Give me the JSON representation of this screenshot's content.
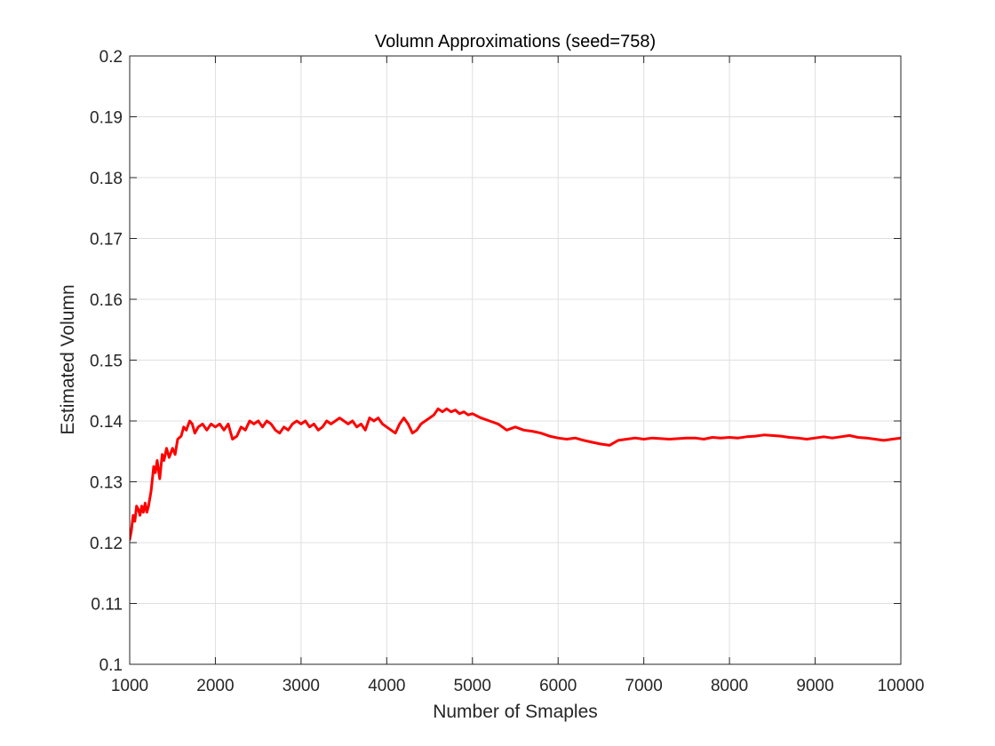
{
  "chart_data": {
    "type": "line",
    "title": "Volumn Approximations (seed=758)",
    "xlabel": "Number of Smaples",
    "ylabel": "Estimated Volumn",
    "xlim": [
      1000,
      10000
    ],
    "ylim": [
      0.1,
      0.2
    ],
    "xticks": [
      1000,
      2000,
      3000,
      4000,
      5000,
      6000,
      7000,
      8000,
      9000,
      10000
    ],
    "yticks": [
      0.1,
      0.11,
      0.12,
      0.13,
      0.14,
      0.15,
      0.16,
      0.17,
      0.18,
      0.19,
      0.2
    ],
    "xtick_labels": [
      "1000",
      "2000",
      "3000",
      "4000",
      "5000",
      "6000",
      "7000",
      "8000",
      "9000",
      "10000"
    ],
    "ytick_labels": [
      "0.1",
      "0.11",
      "0.12",
      "0.13",
      "0.14",
      "0.15",
      "0.16",
      "0.17",
      "0.18",
      "0.19",
      "0.2"
    ],
    "grid": true,
    "box": true,
    "line_color": "#ff0000",
    "series": [
      {
        "x": [
          1000,
          1020,
          1040,
          1060,
          1080,
          1100,
          1120,
          1140,
          1160,
          1180,
          1200,
          1220,
          1250,
          1280,
          1300,
          1320,
          1350,
          1380,
          1400,
          1430,
          1460,
          1500,
          1530,
          1560,
          1600,
          1630,
          1660,
          1700,
          1730,
          1760,
          1800,
          1850,
          1900,
          1950,
          2000,
          2050,
          2100,
          2150,
          2200,
          2250,
          2300,
          2350,
          2400,
          2450,
          2500,
          2550,
          2600,
          2650,
          2700,
          2750,
          2800,
          2850,
          2900,
          2950,
          3000,
          3050,
          3100,
          3150,
          3200,
          3250,
          3300,
          3350,
          3400,
          3450,
          3500,
          3550,
          3600,
          3650,
          3700,
          3750,
          3800,
          3850,
          3900,
          3950,
          4000,
          4050,
          4100,
          4150,
          4200,
          4250,
          4300,
          4350,
          4400,
          4450,
          4500,
          4550,
          4600,
          4650,
          4700,
          4750,
          4800,
          4850,
          4900,
          4950,
          5000,
          5100,
          5200,
          5300,
          5400,
          5500,
          5600,
          5700,
          5800,
          5900,
          6000,
          6100,
          6200,
          6300,
          6400,
          6500,
          6600,
          6700,
          6800,
          6900,
          7000,
          7100,
          7200,
          7300,
          7400,
          7500,
          7600,
          7700,
          7800,
          7900,
          8000,
          8100,
          8200,
          8300,
          8400,
          8500,
          8600,
          8700,
          8800,
          8900,
          9000,
          9100,
          9200,
          9300,
          9400,
          9500,
          9600,
          9700,
          9800,
          9900,
          10000
        ],
        "values": [
          0.1205,
          0.122,
          0.1245,
          0.1235,
          0.126,
          0.1255,
          0.1245,
          0.126,
          0.125,
          0.1265,
          0.125,
          0.126,
          0.1285,
          0.1325,
          0.1315,
          0.1335,
          0.1305,
          0.1345,
          0.1335,
          0.1355,
          0.134,
          0.1355,
          0.1345,
          0.137,
          0.1375,
          0.139,
          0.1385,
          0.14,
          0.1395,
          0.138,
          0.139,
          0.1395,
          0.1385,
          0.1395,
          0.139,
          0.1395,
          0.1385,
          0.1395,
          0.137,
          0.1375,
          0.139,
          0.1385,
          0.14,
          0.1395,
          0.14,
          0.139,
          0.14,
          0.1395,
          0.1385,
          0.138,
          0.139,
          0.1385,
          0.1395,
          0.14,
          0.1395,
          0.14,
          0.139,
          0.1395,
          0.1385,
          0.139,
          0.14,
          0.1395,
          0.14,
          0.1405,
          0.14,
          0.1395,
          0.14,
          0.139,
          0.1395,
          0.1385,
          0.1405,
          0.14,
          0.1405,
          0.1395,
          0.139,
          0.1385,
          0.138,
          0.1395,
          0.1405,
          0.1395,
          0.138,
          0.1385,
          0.1395,
          0.14,
          0.1405,
          0.141,
          0.142,
          0.1415,
          0.142,
          0.1415,
          0.1418,
          0.1412,
          0.1415,
          0.141,
          0.1412,
          0.1405,
          0.14,
          0.1395,
          0.1385,
          0.139,
          0.1385,
          0.1383,
          0.138,
          0.1375,
          0.1372,
          0.137,
          0.1372,
          0.1368,
          0.1365,
          0.1362,
          0.136,
          0.1368,
          0.137,
          0.1372,
          0.137,
          0.1372,
          0.1371,
          0.137,
          0.1371,
          0.1372,
          0.1372,
          0.137,
          0.1373,
          0.1372,
          0.1373,
          0.1372,
          0.1374,
          0.1375,
          0.1377,
          0.1376,
          0.1375,
          0.1373,
          0.1372,
          0.137,
          0.1372,
          0.1374,
          0.1372,
          0.1374,
          0.1376,
          0.1373,
          0.1372,
          0.137,
          0.1368,
          0.137,
          0.1372
        ]
      }
    ]
  }
}
